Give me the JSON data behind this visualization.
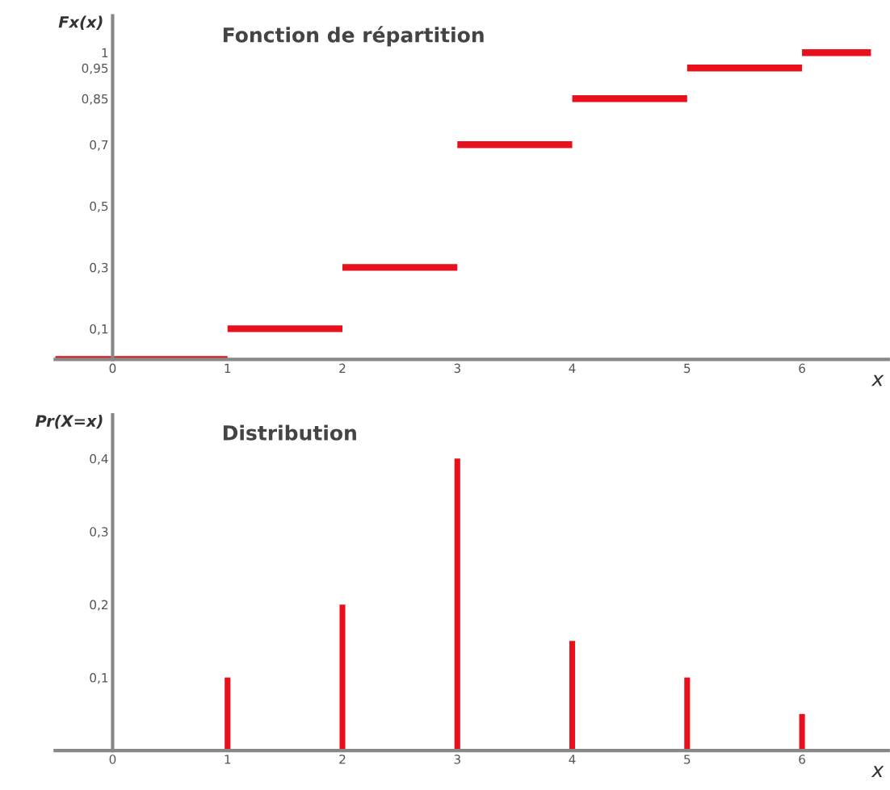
{
  "chart_data": [
    {
      "type": "step",
      "title": "Fonction de répartition",
      "xlabel": "x",
      "ylabel": "Fx(x)",
      "x": [
        -0.5,
        1,
        2,
        3,
        4,
        5,
        6,
        6.6
      ],
      "series": [
        {
          "color": "#e8101c",
          "values": [
            0,
            0.1,
            0.3,
            0.7,
            0.85,
            0.95,
            1,
            1
          ]
        }
      ],
      "xlim": [
        -0.5,
        6.75
      ],
      "ylim": [
        0,
        1.12
      ],
      "xticks": [
        0,
        1,
        2,
        3,
        4,
        5,
        6
      ],
      "yticks": [
        {
          "value": 0.1,
          "label": "0,1"
        },
        {
          "value": 0.3,
          "label": "0,3"
        },
        {
          "value": 0.5,
          "label": "0,5"
        },
        {
          "value": 0.7,
          "label": "0,7"
        },
        {
          "value": 0.85,
          "label": "0,85"
        },
        {
          "value": 0.95,
          "label": "0,95"
        },
        1
      ]
    },
    {
      "type": "bar",
      "title": "Distribution",
      "xlabel": "x",
      "ylabel": "Pr(X=x)",
      "x": [
        1,
        2,
        3,
        4,
        5,
        6
      ],
      "series": [
        {
          "color": "#e8101c",
          "values": [
            0.1,
            0.2,
            0.4,
            0.15,
            0.1,
            0.05
          ]
        }
      ],
      "xlim": [
        -0.5,
        6.75
      ],
      "ylim": [
        0,
        0.46
      ],
      "xticks": [
        0,
        1,
        2,
        3,
        4,
        5,
        6
      ],
      "yticks": [
        {
          "value": 0.1,
          "label": "0,1"
        },
        {
          "value": 0.2,
          "label": "0,2"
        },
        {
          "value": 0.3,
          "label": "0,3"
        },
        {
          "value": 0.4,
          "label": "0,4"
        }
      ]
    }
  ]
}
